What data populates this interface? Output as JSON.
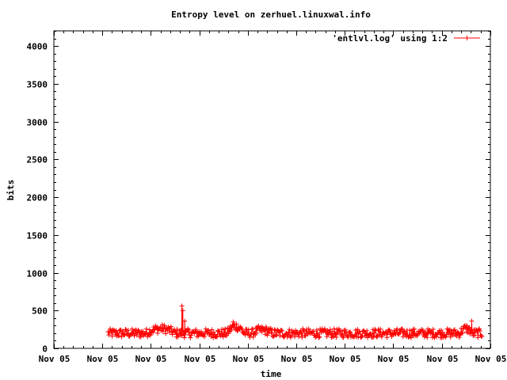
{
  "chart_data": {
    "type": "scatter",
    "title": "Entropy level on zerhuel.linuxwal.info",
    "xlabel": "time",
    "ylabel": "bits",
    "ylim": [
      0,
      4200
    ],
    "yticks": [
      0,
      500,
      1000,
      1500,
      2000,
      2500,
      3000,
      3500,
      4000
    ],
    "xlim": [
      0,
      9.5
    ],
    "xticks": [
      0,
      1,
      2,
      3,
      4,
      5,
      6,
      7,
      8,
      9
    ],
    "xtick_labels": [
      "Nov 05",
      "Nov 05",
      "Nov 05",
      "Nov 05",
      "Nov 05",
      "Nov 05",
      "Nov 05",
      "Nov 05",
      "Nov 05",
      "Nov 05"
    ],
    "grid": false,
    "legend_position": "top-right",
    "series": [
      {
        "name": "'entlvl.log' using 1:2",
        "color": "#ff0000",
        "marker": "plus-with-lines",
        "x_range": [
          1.12,
          8.83
        ],
        "baseline": 200,
        "noise": 60,
        "bumps": [
          {
            "x": 2.2,
            "height": 60,
            "width": 0.6
          },
          {
            "x": 3.75,
            "height": 90,
            "width": 0.35
          },
          {
            "x": 4.3,
            "height": 40,
            "width": 0.4
          },
          {
            "x": 8.5,
            "height": 60,
            "width": 0.25
          }
        ],
        "peaks": [
          {
            "x": 2.64,
            "y": 560
          },
          {
            "x": 2.66,
            "y": 500
          },
          {
            "x": 2.7,
            "y": 360
          },
          {
            "x": 3.7,
            "y": 350
          },
          {
            "x": 8.62,
            "y": 360
          }
        ]
      }
    ]
  }
}
